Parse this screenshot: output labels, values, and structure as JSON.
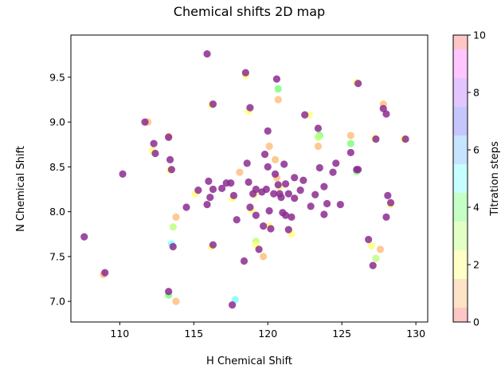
{
  "chart_data": {
    "type": "scatter",
    "title": "Chemical shifts 2D map",
    "xlabel": "H Chemical Shift",
    "ylabel": "N Chemical Shift",
    "xlim": [
      106.7,
      130.8
    ],
    "ylim": [
      6.77,
      9.97
    ],
    "xticks": [
      "110",
      "115",
      "120",
      "125",
      "130"
    ],
    "yticks": [
      "7.0",
      "7.5",
      "8.0",
      "8.5",
      "9.0",
      "9.5"
    ],
    "grid": false,
    "colorbar": {
      "label": "Titration steps",
      "range": [
        0,
        10
      ],
      "ticks": [
        "0",
        "2",
        "4",
        "6",
        "8",
        "10"
      ],
      "band_colors": [
        "#ff8080",
        "#ffc080",
        "#ffff80",
        "#c0ff80",
        "#80ff80",
        "#80ffff",
        "#80c0ff",
        "#8080ff",
        "#c080ff",
        "#ff80ff",
        "#ff8080"
      ]
    },
    "final_step_color": "#8b2c8f",
    "points": [
      [
        107.6,
        7.72
      ],
      [
        109.0,
        7.32
      ],
      [
        110.2,
        8.42
      ],
      [
        111.7,
        9.0
      ],
      [
        112.3,
        8.76
      ],
      [
        112.4,
        8.65
      ],
      [
        113.3,
        8.83
      ],
      [
        113.4,
        8.58
      ],
      [
        113.5,
        8.47
      ],
      [
        113.3,
        7.11
      ],
      [
        113.6,
        7.61
      ],
      [
        114.5,
        8.05
      ],
      [
        115.3,
        8.24
      ],
      [
        115.9,
        8.08
      ],
      [
        116.0,
        8.34
      ],
      [
        116.1,
        8.16
      ],
      [
        116.3,
        8.25
      ],
      [
        116.3,
        7.63
      ],
      [
        116.3,
        9.2
      ],
      [
        115.9,
        9.76
      ],
      [
        116.9,
        8.26
      ],
      [
        117.2,
        8.32
      ],
      [
        117.5,
        8.32
      ],
      [
        117.7,
        8.18
      ],
      [
        117.9,
        7.91
      ],
      [
        117.6,
        6.96
      ],
      [
        118.4,
        7.45
      ],
      [
        118.5,
        9.55
      ],
      [
        118.6,
        8.54
      ],
      [
        118.7,
        8.33
      ],
      [
        118.8,
        9.16
      ],
      [
        118.8,
        8.05
      ],
      [
        119.0,
        8.2
      ],
      [
        119.2,
        8.25
      ],
      [
        119.2,
        7.96
      ],
      [
        119.4,
        7.58
      ],
      [
        119.6,
        8.22
      ],
      [
        119.7,
        7.84
      ],
      [
        119.8,
        8.64
      ],
      [
        119.9,
        8.25
      ],
      [
        120.0,
        8.9
      ],
      [
        120.0,
        8.5
      ],
      [
        120.1,
        8.01
      ],
      [
        120.2,
        7.81
      ],
      [
        120.4,
        8.2
      ],
      [
        120.5,
        8.42
      ],
      [
        120.6,
        9.48
      ],
      [
        120.7,
        8.3
      ],
      [
        120.8,
        8.2
      ],
      [
        120.9,
        8.16
      ],
      [
        121.0,
        7.99
      ],
      [
        121.1,
        8.53
      ],
      [
        121.2,
        8.31
      ],
      [
        121.2,
        7.96
      ],
      [
        121.4,
        8.2
      ],
      [
        121.4,
        7.8
      ],
      [
        121.6,
        7.94
      ],
      [
        121.8,
        8.15
      ],
      [
        121.8,
        8.38
      ],
      [
        122.2,
        8.24
      ],
      [
        122.4,
        8.35
      ],
      [
        122.5,
        9.08
      ],
      [
        122.9,
        8.06
      ],
      [
        123.2,
        8.19
      ],
      [
        123.4,
        8.93
      ],
      [
        123.5,
        8.49
      ],
      [
        123.8,
        8.28
      ],
      [
        123.8,
        7.97
      ],
      [
        124.0,
        8.09
      ],
      [
        124.4,
        8.44
      ],
      [
        124.6,
        8.54
      ],
      [
        124.9,
        8.08
      ],
      [
        125.6,
        8.66
      ],
      [
        126.0,
        8.47
      ],
      [
        126.1,
        9.43
      ],
      [
        126.1,
        8.47
      ],
      [
        126.8,
        7.69
      ],
      [
        127.1,
        7.4
      ],
      [
        127.3,
        8.81
      ],
      [
        127.8,
        9.15
      ],
      [
        128.0,
        9.09
      ],
      [
        128.0,
        7.94
      ],
      [
        128.1,
        8.18
      ],
      [
        128.3,
        8.1
      ],
      [
        129.3,
        8.81
      ]
    ],
    "shifted_points": [
      [
        108.9,
        7.3,
        1
      ],
      [
        111.9,
        9.0,
        1
      ],
      [
        112.2,
        8.68,
        2
      ],
      [
        113.3,
        8.84,
        1
      ],
      [
        113.4,
        8.46,
        2
      ],
      [
        113.8,
        7.94,
        1
      ],
      [
        113.6,
        7.83,
        3
      ],
      [
        113.5,
        7.64,
        5
      ],
      [
        113.8,
        7.0,
        1
      ],
      [
        113.3,
        7.07,
        4
      ],
      [
        115.1,
        8.2,
        2
      ],
      [
        116.2,
        7.61,
        2
      ],
      [
        116.2,
        9.19,
        2
      ],
      [
        117.6,
        8.15,
        2
      ],
      [
        118.1,
        8.44,
        1
      ],
      [
        117.8,
        7.02,
        5
      ],
      [
        118.5,
        9.52,
        2
      ],
      [
        118.7,
        9.12,
        2
      ],
      [
        118.9,
        8.02,
        2
      ],
      [
        119.1,
        8.19,
        2
      ],
      [
        119.2,
        7.67,
        3
      ],
      [
        119.2,
        7.63,
        2
      ],
      [
        119.7,
        7.5,
        1
      ],
      [
        120.1,
        8.73,
        1
      ],
      [
        120.1,
        7.84,
        2
      ],
      [
        120.5,
        8.58,
        1
      ],
      [
        120.6,
        8.38,
        1
      ],
      [
        120.7,
        9.25,
        1
      ],
      [
        120.7,
        9.37,
        4
      ],
      [
        120.8,
        8.28,
        2
      ],
      [
        121.6,
        7.75,
        2
      ],
      [
        122.8,
        9.08,
        2
      ],
      [
        123.5,
        8.85,
        4
      ],
      [
        123.4,
        8.73,
        1
      ],
      [
        123.4,
        8.83,
        3
      ],
      [
        125.6,
        8.85,
        1
      ],
      [
        125.6,
        8.76,
        4
      ],
      [
        126.0,
        8.45,
        4
      ],
      [
        126.0,
        9.44,
        2
      ],
      [
        127.0,
        7.62,
        2
      ],
      [
        127.3,
        7.48,
        3
      ],
      [
        127.6,
        7.58,
        1
      ],
      [
        127.2,
        8.82,
        2
      ],
      [
        127.8,
        9.2,
        1
      ],
      [
        128.3,
        8.08,
        2
      ],
      [
        129.2,
        8.81,
        2
      ]
    ]
  }
}
